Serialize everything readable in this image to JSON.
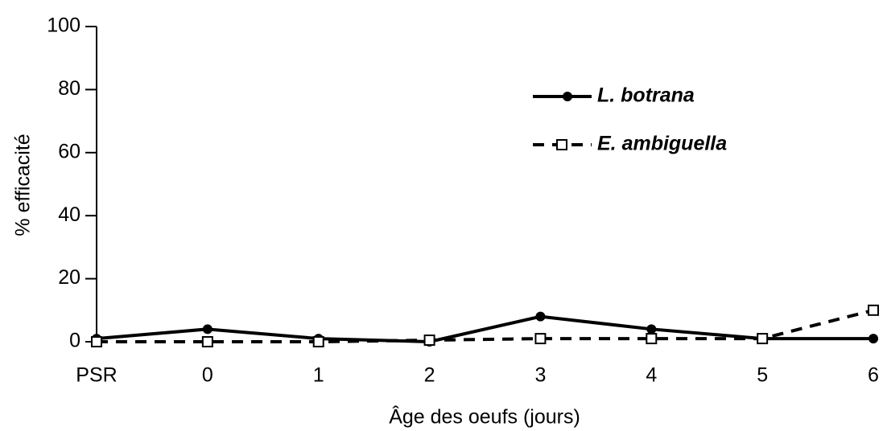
{
  "chart_data": {
    "type": "line",
    "x_label": "Âge des oeufs (jours)",
    "y_label": "% efficacité",
    "categories": [
      "PSR",
      "0",
      "1",
      "2",
      "3",
      "4",
      "5",
      "6"
    ],
    "series": [
      {
        "name": "L. botrana",
        "color": "#000000",
        "linestyle": "solid",
        "marker": "circle-filled",
        "values": [
          1,
          4,
          1,
          0,
          8,
          4,
          1,
          1
        ]
      },
      {
        "name": "E. ambiguella",
        "color": "#000000",
        "linestyle": "dashed",
        "marker": "square-open",
        "values": [
          0,
          0,
          0,
          0.5,
          1,
          1,
          1,
          10
        ]
      }
    ],
    "ylim": [
      0,
      100
    ],
    "yticks": [
      0,
      20,
      40,
      60,
      80,
      100
    ],
    "grid": false,
    "legend": "upper right"
  }
}
